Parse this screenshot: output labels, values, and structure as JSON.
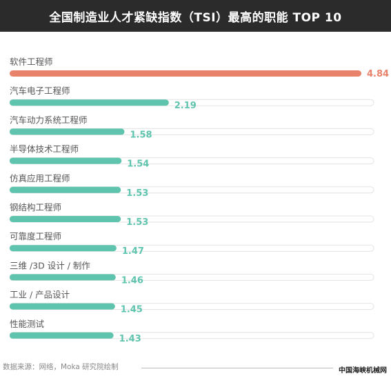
{
  "header": {
    "title": "全国制造业人才紧缺指数（TSI）最高的职能 TOP 10"
  },
  "colors": {
    "header_bg": "#2b2b2b",
    "highlight_bar": "#e9826b",
    "highlight_text": "#e9826b",
    "normal_bar": "#5ec4ad",
    "normal_text": "#5ec4ad",
    "track": "#ffffff",
    "track_border": "#e3e3e3"
  },
  "chart_data": {
    "type": "bar",
    "orientation": "horizontal",
    "title": "全国制造业人才紧缺指数（TSI）最高的职能 TOP 10",
    "categories": [
      "软件工程师",
      "汽车电子工程师",
      "汽车动力系统工程师",
      "半导体技术工程师",
      "仿真应用工程师",
      "钢结构工程师",
      "可靠度工程师",
      "三维 /3D 设计 / 制作",
      "工业 / 产品设计",
      "性能测试"
    ],
    "values": [
      4.84,
      2.19,
      1.58,
      1.54,
      1.53,
      1.53,
      1.47,
      1.46,
      1.45,
      1.43
    ],
    "value_labels": [
      "4.84",
      "2.19",
      "1.58",
      "1.54",
      "1.53",
      "1.53",
      "1.47",
      "1.46",
      "1.45",
      "1.43"
    ],
    "highlight_index": 0,
    "xlim": [
      0,
      4.84
    ],
    "grid": false,
    "legend": "none"
  },
  "footer": {
    "source": "数据来源：网络，Moka 研究院绘制",
    "watermark": "中国海峡机械网"
  }
}
